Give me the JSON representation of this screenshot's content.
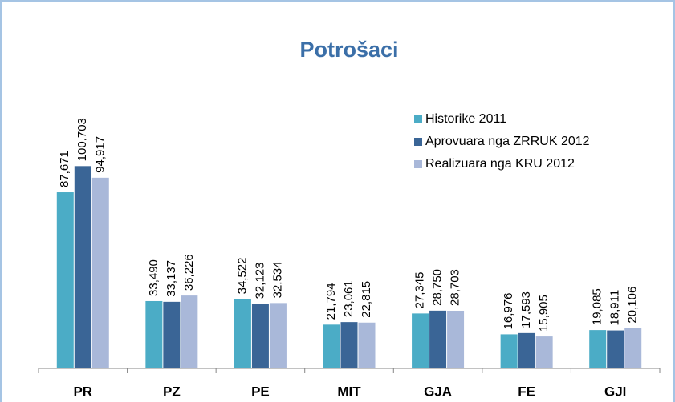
{
  "chart_data": {
    "type": "bar",
    "title": "Potrošaci",
    "categories": [
      "PR",
      "PZ",
      "PE",
      "MIT",
      "GJA",
      "FE",
      "GJI"
    ],
    "series": [
      {
        "name": "Historike  2011",
        "color": "#4bacc6",
        "values": [
          87671,
          33490,
          34522,
          21794,
          27345,
          16976,
          19085
        ],
        "value_labels": [
          "87,671",
          "33,490",
          "34,522",
          "21,794",
          "27,345",
          "16,976",
          "19,085"
        ]
      },
      {
        "name": "Aprovuara nga ZRRUK  2012",
        "color": "#3a6596",
        "values": [
          100703,
          33137,
          32123,
          23061,
          28750,
          17593,
          18911
        ],
        "value_labels": [
          "100,703",
          "33,137",
          "32,123",
          "23,061",
          "28,750",
          "17,593",
          "18,911"
        ]
      },
      {
        "name": "Realizuara nga KRU 2012",
        "color": "#a9b8d9",
        "values": [
          94917,
          36226,
          32534,
          22815,
          28703,
          15905,
          20106
        ],
        "value_labels": [
          "94,917",
          "36,226",
          "32,534",
          "22,815",
          "28,703",
          "15,905",
          "20,106"
        ]
      }
    ],
    "ylim": [
      0,
      110000
    ],
    "legend": "upper right"
  }
}
